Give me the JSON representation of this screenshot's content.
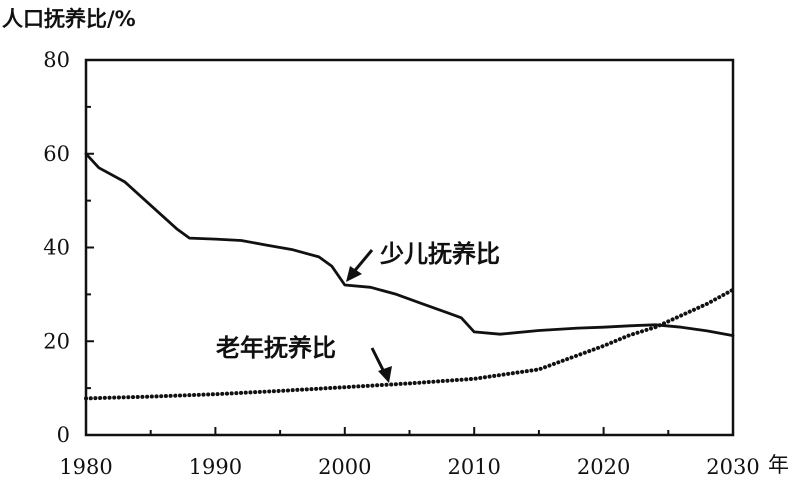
{
  "chart_data": {
    "type": "line",
    "ylabel": "人口抚养比/%",
    "xlabel": "年",
    "xlim": [
      1980,
      2030
    ],
    "ylim": [
      0,
      80
    ],
    "x_ticks": [
      "1980",
      "1990",
      "2000",
      "2010",
      "2020",
      "2030"
    ],
    "y_ticks": [
      "0",
      "20",
      "40",
      "60",
      "80"
    ],
    "grid": false,
    "series": [
      {
        "name": "少儿抚养比",
        "style": "solid",
        "color": "#111111",
        "x": [
          1980,
          1981,
          1983,
          1985,
          1987,
          1988,
          1990,
          1992,
          1994,
          1996,
          1998,
          1999,
          2000,
          2002,
          2004,
          2006,
          2008,
          2009,
          2010,
          2012,
          2015,
          2018,
          2020,
          2022,
          2024,
          2026,
          2028,
          2030
        ],
        "values": [
          60,
          57,
          54,
          49,
          44,
          42,
          41.8,
          41.5,
          40.5,
          39.5,
          38,
          36,
          32,
          31.5,
          30,
          28,
          26,
          25,
          22,
          21.5,
          22.3,
          22.8,
          23,
          23.3,
          23.5,
          23,
          22.2,
          21.2
        ]
      },
      {
        "name": "老年抚养比",
        "style": "dotted",
        "color": "#111111",
        "x": [
          1980,
          1985,
          1990,
          1995,
          2000,
          2005,
          2010,
          2015,
          2018,
          2020,
          2022,
          2024,
          2026,
          2028,
          2030
        ],
        "values": [
          7.8,
          8.2,
          8.7,
          9.4,
          10.2,
          11,
          12,
          14,
          17,
          19,
          21.3,
          23,
          25.5,
          28,
          31
        ]
      }
    ],
    "annotations": [
      {
        "text": "少儿抚养比",
        "series": 0
      },
      {
        "text": "老年抚养比",
        "series": 1
      }
    ]
  }
}
